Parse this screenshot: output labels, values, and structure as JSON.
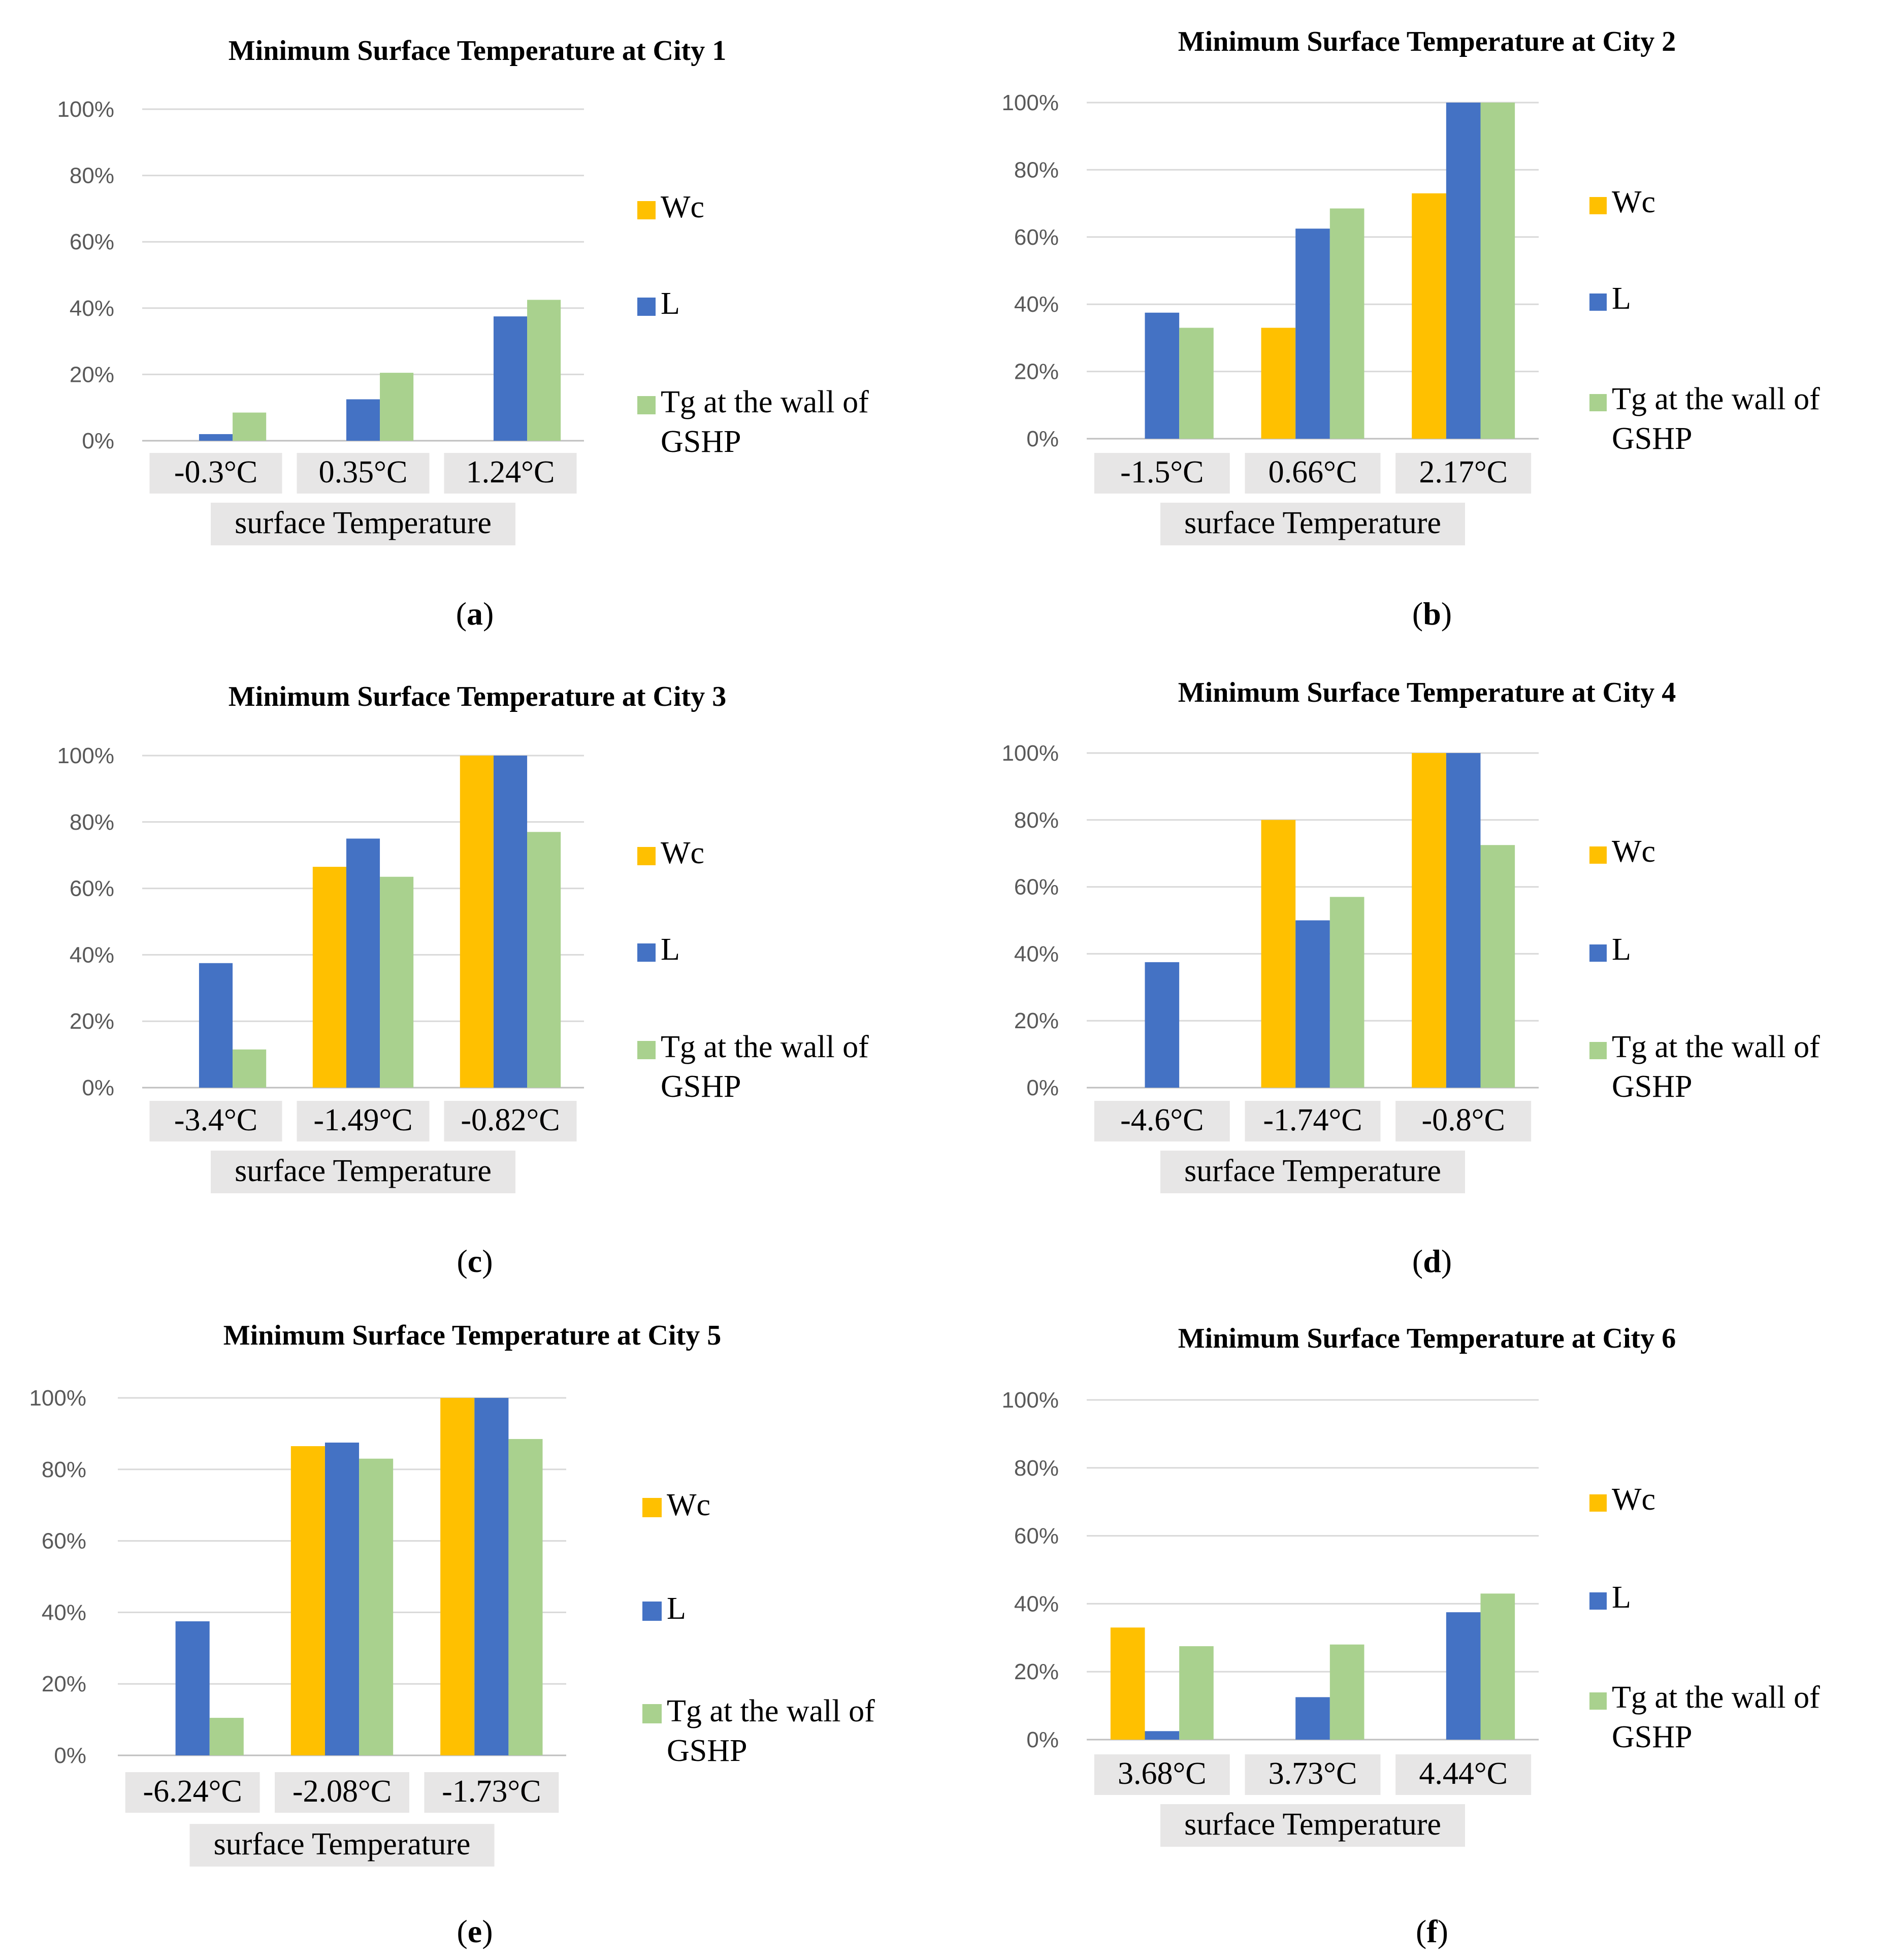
{
  "chart_data": [
    {
      "type": "bar",
      "caption": "a",
      "title": "Minimum Surface Temperature at City 1",
      "xlabel": "surface Temperature",
      "ylabel": "",
      "ylim": [
        0,
        100
      ],
      "yticks": [
        "0%",
        "20%",
        "40%",
        "60%",
        "80%",
        "100%"
      ],
      "categories": [
        "-0.3°C",
        "0.35°C",
        "1.24°C"
      ],
      "series": [
        {
          "name": "Wc",
          "values": [
            0,
            0,
            0
          ]
        },
        {
          "name": "L",
          "values": [
            2,
            12.5,
            37.5
          ]
        },
        {
          "name": "Tg at the wall of GSHP",
          "values": [
            8.5,
            20.5,
            42.5
          ]
        }
      ]
    },
    {
      "type": "bar",
      "caption": "b",
      "title": "Minimum Surface Temperature at City 2",
      "xlabel": "surface Temperature",
      "ylabel": "",
      "ylim": [
        0,
        100
      ],
      "yticks": [
        "0%",
        "20%",
        "40%",
        "60%",
        "80%",
        "100%"
      ],
      "categories": [
        "-1.5°C",
        "0.66°C",
        "2.17°C"
      ],
      "series": [
        {
          "name": "Wc",
          "values": [
            0,
            33,
            73
          ]
        },
        {
          "name": "L",
          "values": [
            37.5,
            62.5,
            100
          ]
        },
        {
          "name": "Tg at the wall of GSHP",
          "values": [
            33,
            68.5,
            100
          ]
        }
      ]
    },
    {
      "type": "bar",
      "caption": "c",
      "title": "Minimum Surface Temperature at City 3",
      "xlabel": "surface Temperature",
      "ylabel": "",
      "ylim": [
        0,
        100
      ],
      "yticks": [
        "0%",
        "20%",
        "40%",
        "60%",
        "80%",
        "100%"
      ],
      "categories": [
        "-3.4°C",
        "-1.49°C",
        "-0.82°C"
      ],
      "series": [
        {
          "name": "Wc",
          "values": [
            0,
            66.5,
            100
          ]
        },
        {
          "name": "L",
          "values": [
            37.5,
            75,
            100
          ]
        },
        {
          "name": "Tg at the wall of GSHP",
          "values": [
            11.5,
            63.5,
            77
          ]
        }
      ]
    },
    {
      "type": "bar",
      "caption": "d",
      "title": "Minimum Surface Temperature at City 4",
      "xlabel": "surface Temperature",
      "ylabel": "",
      "ylim": [
        0,
        100
      ],
      "yticks": [
        "0%",
        "20%",
        "40%",
        "60%",
        "80%",
        "100%"
      ],
      "categories": [
        "-4.6°C",
        "-1.74°C",
        "-0.8°C"
      ],
      "series": [
        {
          "name": "Wc",
          "values": [
            0,
            80,
            100
          ]
        },
        {
          "name": "L",
          "values": [
            37.5,
            50,
            100
          ]
        },
        {
          "name": "Tg at the wall of GSHP",
          "values": [
            0,
            57,
            72.5
          ]
        }
      ]
    },
    {
      "type": "bar",
      "caption": "e",
      "title": "Minimum Surface Temperature at City 5",
      "xlabel": "surface Temperature",
      "ylabel": "",
      "ylim": [
        0,
        100
      ],
      "yticks": [
        "0%",
        "20%",
        "40%",
        "60%",
        "80%",
        "100%"
      ],
      "categories": [
        "-6.24°C",
        "-2.08°C",
        "-1.73°C"
      ],
      "series": [
        {
          "name": "Wc",
          "values": [
            0,
            86.5,
            100
          ]
        },
        {
          "name": "L",
          "values": [
            37.5,
            87.5,
            100
          ]
        },
        {
          "name": "Tg at the wall of GSHP",
          "values": [
            10.5,
            83,
            88.5
          ]
        }
      ]
    },
    {
      "type": "bar",
      "caption": "f",
      "title": "Minimum Surface Temperature at City 6",
      "xlabel": "surface Temperature",
      "ylabel": "",
      "ylim": [
        0,
        100
      ],
      "yticks": [
        "0%",
        "20%",
        "40%",
        "60%",
        "80%",
        "100%"
      ],
      "categories": [
        "3.68°C",
        "3.73°C",
        "4.44°C"
      ],
      "series": [
        {
          "name": "Wc",
          "values": [
            33,
            0,
            0
          ]
        },
        {
          "name": "L",
          "values": [
            2.5,
            12.5,
            37.5
          ]
        },
        {
          "name": "Tg at the wall of GSHP",
          "values": [
            27.5,
            28,
            43
          ]
        }
      ]
    }
  ],
  "colors": {
    "Wc": "#ffc000",
    "L": "#4472c4",
    "Tg at the wall of GSHP": "#a9d18e"
  }
}
